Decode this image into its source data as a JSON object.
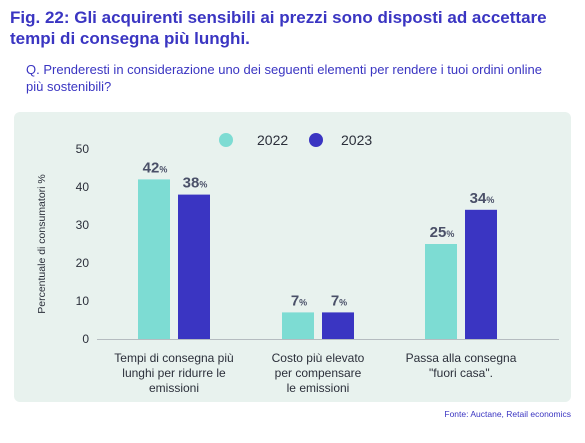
{
  "figure": {
    "title": "Fig. 22: Gli acquirenti sensibili ai prezzi sono disposti ad accettare tempi di consegna più lunghi.",
    "question": "Q. Prenderesti in considerazione uno dei seguenti elementi per rendere i tuoi ordini online più sostenibili?",
    "source": "Fonte: Auctane, Retail economics"
  },
  "colors": {
    "title": "#3a35c2",
    "panel_bg": "#e8f2ee",
    "series_2022": "#7ddcd3",
    "series_2023": "#3a35c2",
    "axis_text": "#2b2f3a",
    "value_label": "#4a5068"
  },
  "chart_data": {
    "type": "bar",
    "categories": [
      [
        "Tempi di consegna più",
        "lunghi per ridurre le",
        "emissioni"
      ],
      [
        "Costo più elevato",
        "per compensare",
        "le emissioni"
      ],
      [
        "Passa alla consegna",
        "\"fuori casa\"."
      ]
    ],
    "series": [
      {
        "name": "2022",
        "values": [
          42,
          7,
          25
        ]
      },
      {
        "name": "2023",
        "values": [
          38,
          7,
          34
        ]
      }
    ],
    "value_suffix": "%",
    "ylabel": "Percentuale di consumatori %",
    "ylim": [
      0,
      50
    ],
    "yticks": [
      0,
      10,
      20,
      30,
      40,
      50
    ],
    "legend_position": "top-center",
    "grid": false
  }
}
